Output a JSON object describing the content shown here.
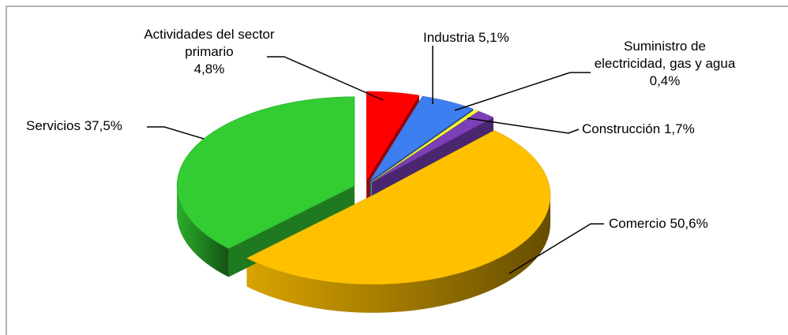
{
  "chart_data": {
    "type": "pie3d",
    "categories": [
      "Actividades del sector primario",
      "Industria",
      "Suministro de electricidad, gas y agua",
      "Construcción",
      "Comercio",
      "Servicios"
    ],
    "values": [
      4.8,
      5.1,
      0.4,
      1.7,
      50.6,
      37.5
    ],
    "value_labels": [
      "4,8%",
      "5,1%",
      "0,4%",
      "1,7%",
      "50,6%",
      "37,5%"
    ],
    "colors": [
      "#ff0000",
      "#3d7ef0",
      "#ffff33",
      "#7b3fb8",
      "#ffc000",
      "#33cc33"
    ]
  }
}
